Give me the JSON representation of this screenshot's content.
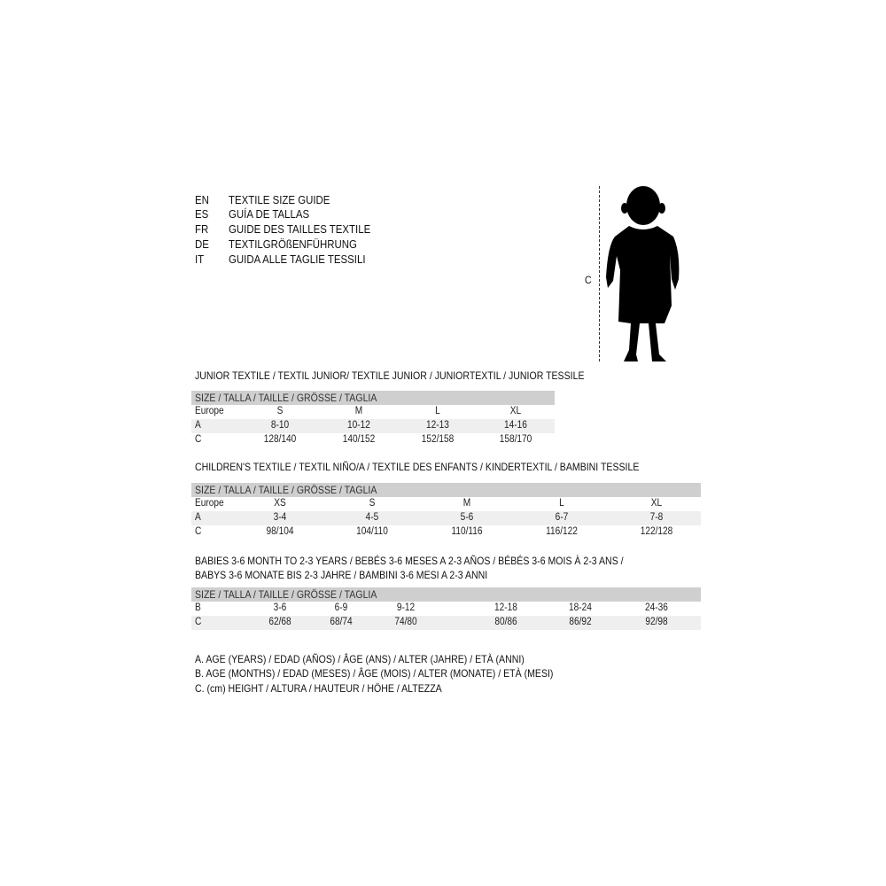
{
  "languages": [
    {
      "code": "EN",
      "title": "TEXTILE SIZE GUIDE"
    },
    {
      "code": "ES",
      "title": "GUÍA DE TALLAS"
    },
    {
      "code": "FR",
      "title": "GUIDE DES TAILLES TEXTILE"
    },
    {
      "code": "DE",
      "title": "TEXTILGRÖßENFÜHRUNG"
    },
    {
      "code": "IT",
      "title": "GUIDA ALLE TAGLIE TESSILI"
    }
  ],
  "figure": {
    "label": "C"
  },
  "size_header": "SIZE / TALLA / TAILLE / GRÖSSE / TAGLIA",
  "junior": {
    "title": "JUNIOR TEXTILE / TEXTIL JUNIOR/ TEXTILE JUNIOR / JUNIORTEXTIL / JUNIOR TESSILE",
    "rows": [
      {
        "label": "Europe",
        "values": [
          "S",
          "M",
          "L",
          "XL"
        ]
      },
      {
        "label": "A",
        "values": [
          "8-10",
          "10-12",
          "12-13",
          "14-16"
        ]
      },
      {
        "label": "C",
        "values": [
          "128/140",
          "140/152",
          "152/158",
          "158/170"
        ]
      }
    ]
  },
  "children": {
    "title": "CHILDREN'S TEXTILE / TEXTIL NIÑO/A / TEXTILE DES ENFANTS / KINDERTEXTIL / BAMBINI TESSILE",
    "rows": [
      {
        "label": "Europe",
        "values": [
          "XS",
          "S",
          "M",
          "L",
          "XL"
        ]
      },
      {
        "label": "A",
        "values": [
          "3-4",
          "4-5",
          "5-6",
          "6-7",
          "7-8"
        ]
      },
      {
        "label": "C",
        "values": [
          "98/104",
          "104/110",
          "110/116",
          "116/122",
          "122/128"
        ]
      }
    ]
  },
  "babies": {
    "title_line1": "BABIES 3-6 MONTH TO 2-3 YEARS / BEBÉS 3-6 MESES A 2-3 AÑOS / BÉBÉS 3-6 MOIS À 2-3 ANS /",
    "title_line2": "BABYS 3-6 MONATE BIS 2-3 JAHRE / BAMBINI 3-6 MESI A 2-3 ANNI",
    "rows": [
      {
        "label": "B",
        "values": [
          "3-6",
          "6-9",
          "9-12",
          "12-18",
          "18-24",
          "24-36"
        ]
      },
      {
        "label": "C",
        "values": [
          "62/68",
          "68/74",
          "74/80",
          "80/86",
          "86/92",
          "92/98"
        ]
      }
    ]
  },
  "legend": [
    "A. AGE (YEARS) / EDAD (AÑOS) / ÂGE (ANS) / ALTER (JAHRE) / ETÀ (ANNI)",
    "B. AGE (MONTHS) / EDAD (MESES) / ÂGE (MOIS) / ALTER (MONATE) / ETÀ (MESI)",
    "C. (cm) HEIGHT / ALTURA / HAUTEUR / HÖHE / ALTEZZA"
  ]
}
